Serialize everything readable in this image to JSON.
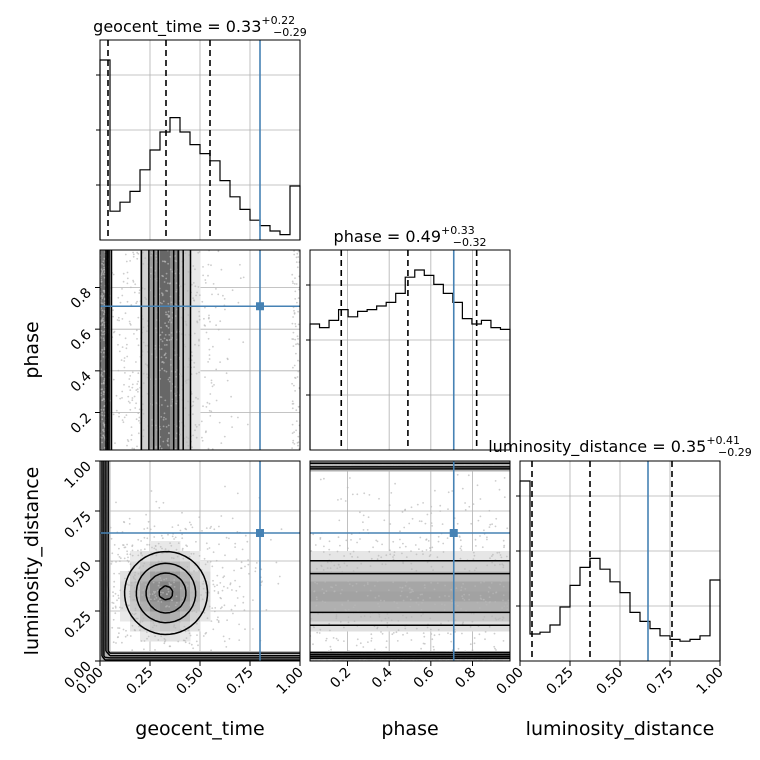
{
  "chart_data": {
    "type": "corner",
    "parameters": [
      "geocent_time",
      "phase",
      "luminosity_distance"
    ],
    "titles": {
      "geocent_time": {
        "name": "geocent_time",
        "median": "0.33",
        "plus": "+0.22",
        "minus": "−0.29"
      },
      "phase": {
        "name": "phase",
        "median": "0.49",
        "plus": "+0.33",
        "minus": "−0.32"
      },
      "luminosity_distance": {
        "name": "luminosity_distance",
        "median": "0.35",
        "plus": "+0.41",
        "minus": "−0.29"
      }
    },
    "ranges": {
      "geocent_time": [
        0,
        1
      ],
      "phase": [
        0.02,
        0.98
      ],
      "luminosity_distance": [
        0,
        1
      ]
    },
    "ticks": {
      "geocent_time": [
        "0.00",
        "0.25",
        "0.50",
        "0.75",
        "1.00"
      ],
      "phase": [
        "0.2",
        "0.4",
        "0.6",
        "0.8"
      ],
      "luminosity_distance": [
        "0.00",
        "0.25",
        "0.50",
        "0.75",
        "1.00"
      ]
    },
    "injection": {
      "geocent_time": 0.8,
      "phase": 0.71,
      "luminosity_distance": 0.64
    },
    "quantiles": {
      "geocent_time": [
        0.04,
        0.33,
        0.55
      ],
      "phase": [
        0.17,
        0.49,
        0.82
      ],
      "luminosity_distance": [
        0.06,
        0.35,
        0.76
      ]
    },
    "histograms": {
      "geocent_time": [
        1.0,
        0.16,
        0.21,
        0.27,
        0.39,
        0.5,
        0.6,
        0.68,
        0.6,
        0.53,
        0.48,
        0.44,
        0.33,
        0.24,
        0.17,
        0.11,
        0.08,
        0.05,
        0.03,
        0.3
      ],
      "phase": [
        0.7,
        0.68,
        0.72,
        0.78,
        0.74,
        0.77,
        0.78,
        0.8,
        0.82,
        0.87,
        0.96,
        1.0,
        0.97,
        0.92,
        0.87,
        0.82,
        0.73,
        0.7,
        0.72,
        0.68,
        0.67
      ],
      "luminosity_distance": [
        1.0,
        0.15,
        0.16,
        0.2,
        0.3,
        0.42,
        0.52,
        0.57,
        0.51,
        0.44,
        0.38,
        0.27,
        0.22,
        0.18,
        0.14,
        0.12,
        0.11,
        0.12,
        0.14,
        0.45
      ]
    },
    "xlabels": [
      "geocent_time",
      "phase",
      "luminosity_distance"
    ],
    "ylabels": [
      "phase",
      "luminosity_distance"
    ],
    "grid": true,
    "colors": {
      "truth": "#4682b4",
      "hist": "#000000",
      "grid": "#b0b0b0",
      "scatter": "#b8b8b8"
    }
  }
}
